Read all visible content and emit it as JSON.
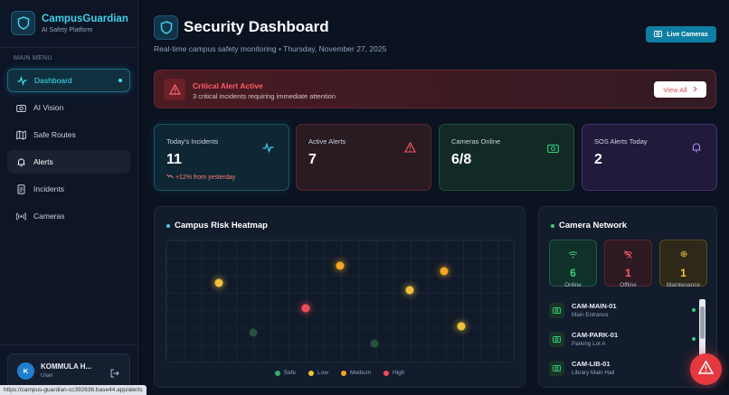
{
  "app": {
    "name": "CampusGuardian",
    "tagline": "AI Safety Platform",
    "accent": "#3fd0e8"
  },
  "sidebar": {
    "menu_label": "MAIN MENU",
    "items": [
      {
        "label": "Dashboard",
        "icon": "activity-icon",
        "active": true
      },
      {
        "label": "AI Vision",
        "icon": "camera-icon"
      },
      {
        "label": "Safe Routes",
        "icon": "map-icon"
      },
      {
        "label": "Alerts",
        "icon": "bell-icon",
        "hovered": true
      },
      {
        "label": "Incidents",
        "icon": "document-icon"
      },
      {
        "label": "Cameras",
        "icon": "broadcast-icon"
      }
    ]
  },
  "user": {
    "initial": "K",
    "name": "KOMMULA H...",
    "role": "User"
  },
  "status_url": "https://campus-guardian-cc392636.base44.app/alerts",
  "header": {
    "title": "Security Dashboard",
    "subtitle": "Real-time campus safety monitoring • Thursday, November 27, 2025",
    "live_button": "Live Cameras"
  },
  "critical_alert": {
    "title": "Critical Alert Active",
    "message": "3 critical incidents requiring immediate attention",
    "button": "View All"
  },
  "stats": [
    {
      "label": "Today's Incidents",
      "value": "11",
      "note": "+12% from yesterday",
      "icon": "pulse-icon",
      "color": "#3fd0e8"
    },
    {
      "label": "Active Alerts",
      "value": "7",
      "icon": "warning-icon",
      "color": "#ff5b66"
    },
    {
      "label": "Cameras Online",
      "value": "6/8",
      "icon": "camera-icon",
      "color": "#33d17a"
    },
    {
      "label": "SOS Alerts Today",
      "value": "2",
      "icon": "bell-icon",
      "color": "#a78bfa"
    }
  ],
  "heatmap": {
    "title": "Campus Risk Heatmap",
    "legend": [
      {
        "label": "Safe",
        "color": "#33b36b"
      },
      {
        "label": "Low",
        "color": "#f0c23a"
      },
      {
        "label": "Medium",
        "color": "#f5a623"
      },
      {
        "label": "High",
        "color": "#ef4b5a"
      }
    ],
    "points": [
      {
        "x": 0.15,
        "y": 0.35,
        "level": "Low"
      },
      {
        "x": 0.5,
        "y": 0.21,
        "level": "Medium"
      },
      {
        "x": 0.8,
        "y": 0.25,
        "level": "Medium"
      },
      {
        "x": 0.7,
        "y": 0.41,
        "level": "Low"
      },
      {
        "x": 0.4,
        "y": 0.56,
        "level": "High"
      },
      {
        "x": 0.25,
        "y": 0.76,
        "level": "Safe"
      },
      {
        "x": 0.85,
        "y": 0.71,
        "level": "Low"
      },
      {
        "x": 0.6,
        "y": 0.85,
        "level": "Safe"
      }
    ]
  },
  "camera_network": {
    "title": "Camera Network",
    "summary": [
      {
        "value": "6",
        "label": "Online",
        "icon": "wifi-icon"
      },
      {
        "value": "1",
        "label": "Offline",
        "icon": "wifi-off-icon"
      },
      {
        "value": "1",
        "label": "Maintenance",
        "icon": "gear-icon"
      }
    ],
    "cameras": [
      {
        "id": "CAM-MAIN-01",
        "location": "Main Entrance"
      },
      {
        "id": "CAM-PARK-01",
        "location": "Parking Lot A"
      },
      {
        "id": "CAM-LIB-01",
        "location": "Library Main Hall"
      }
    ]
  }
}
